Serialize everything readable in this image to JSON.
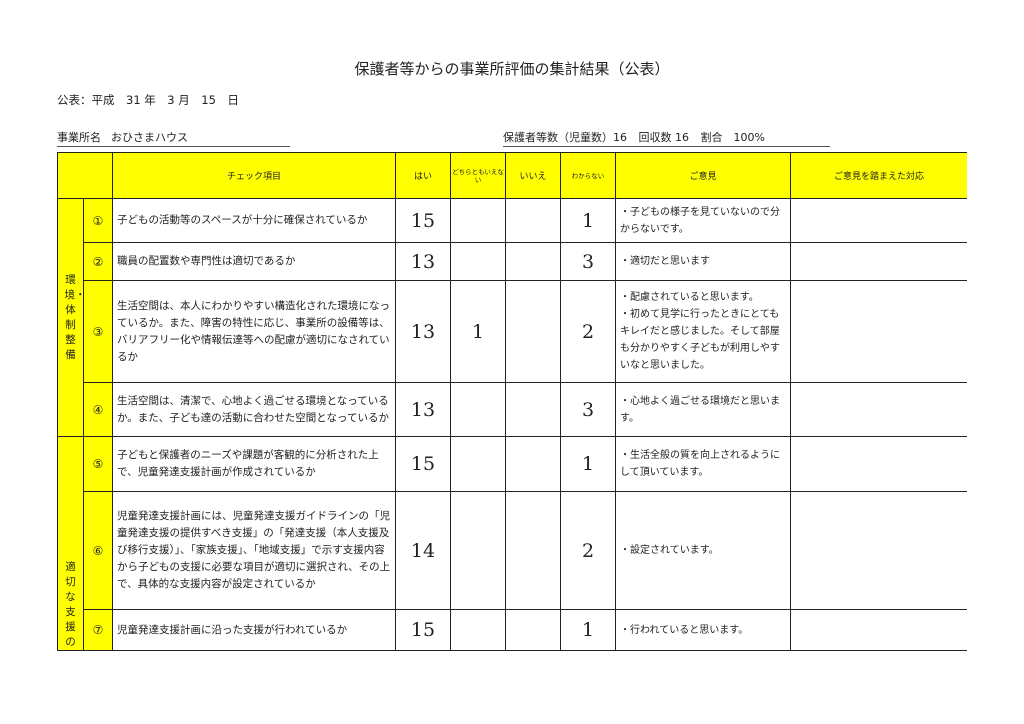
{
  "title": "保護者等からの事業所評価の集計結果（公表）",
  "publish_date": "公表：平成　31 年　3 月　15　日",
  "office": {
    "label": "事業所名",
    "name": "おひさまハウス"
  },
  "counts": {
    "guardians": "保護者等数（児童数）16",
    "collected": "回収数 16",
    "ratio": "割合　100%"
  },
  "table": {
    "headers": {
      "item": "チェック項目",
      "yes": "はい",
      "neither": "どちらともいえない",
      "no": "いいえ",
      "unknown": "わからない",
      "opinion": "ご意見",
      "response": "ご意見を踏まえた対応"
    },
    "categories": [
      {
        "label": "環境・体制整備"
      },
      {
        "label": "適切な支援の"
      }
    ],
    "rows": [
      {
        "no": "①",
        "item": "子どもの活動等のスペースが十分に確保されているか",
        "yes": "15",
        "neither": "",
        "no_count": "",
        "unknown": "1",
        "opinion": "・子どもの様子を見ていないので分からないです。",
        "response": ""
      },
      {
        "no": "②",
        "item": "職員の配置数や専門性は適切であるか",
        "yes": "13",
        "neither": "",
        "no_count": "",
        "unknown": "3",
        "opinion": "・適切だと思います",
        "response": ""
      },
      {
        "no": "③",
        "item": "生活空間は、本人にわかりやすい構造化された環境になっているか。また、障害の特性に応じ、事業所の設備等は、バリアフリー化や情報伝達等への配慮が適切になされているか",
        "yes": "13",
        "neither": "1",
        "no_count": "",
        "unknown": "2",
        "opinion": "・配慮されていると思います。\n・初めて見学に行ったときにとてもキレイだと感じました。そして部屋も分かりやすく子どもが利用しやすいなと思いました。",
        "response": ""
      },
      {
        "no": "④",
        "item": "生活空間は、清潔で、心地よく過ごせる環境となっているか。また、子ども達の活動に合わせた空間となっているか",
        "yes": "13",
        "neither": "",
        "no_count": "",
        "unknown": "3",
        "opinion": "・心地よく過ごせる環境だと思います。",
        "response": ""
      },
      {
        "no": "⑤",
        "item": "子どもと保護者のニーズや課題が客観的に分析された上で、児童発達支援計画が作成されているか",
        "yes": "15",
        "neither": "",
        "no_count": "",
        "unknown": "1",
        "opinion": "・生活全般の質を向上されるようにして頂いています。",
        "response": ""
      },
      {
        "no": "⑥",
        "item": "児童発達支援計画には、児童発達支援ガイドラインの「児童発達支援の提供すべき支援」の「発達支援（本人支援及び移行支援）」、「家族支援」、「地域支援」で示す支援内容から子どもの支援に必要な項目が適切に選択され、その上で、具体的な支援内容が設定されているか",
        "yes": "14",
        "neither": "",
        "no_count": "",
        "unknown": "2",
        "opinion": "・設定されています。",
        "response": ""
      },
      {
        "no": "⑦",
        "item": "児童発達支援計画に沿った支援が行われているか",
        "yes": "15",
        "neither": "",
        "no_count": "",
        "unknown": "1",
        "opinion": "・行われていると思います。",
        "response": ""
      }
    ]
  },
  "colors": {
    "header_fill": "#ffff00",
    "border": "#222222"
  }
}
